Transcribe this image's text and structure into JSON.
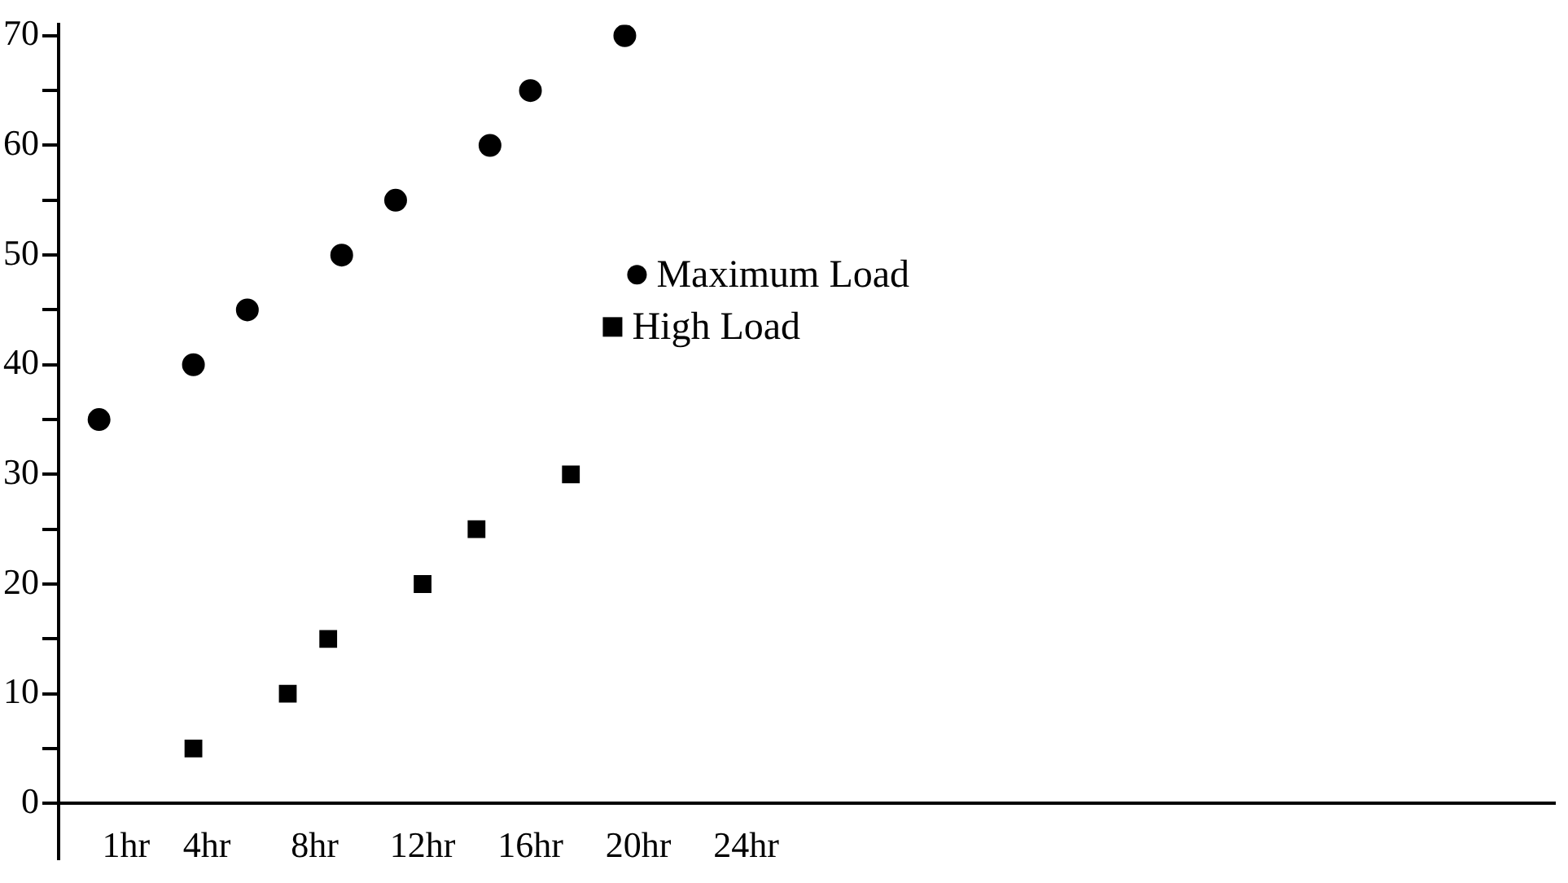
{
  "chart_data": {
    "type": "scatter",
    "xlim": [
      -1.5,
      54
    ],
    "ylim": [
      -5,
      71
    ],
    "xticks": [
      {
        "value": 1,
        "label": "1hr"
      },
      {
        "value": 4,
        "label": "4hr"
      },
      {
        "value": 8,
        "label": "8hr"
      },
      {
        "value": 12,
        "label": "12hr"
      },
      {
        "value": 16,
        "label": "16hr"
      },
      {
        "value": 20,
        "label": "20hr"
      },
      {
        "value": 24,
        "label": "24hr"
      }
    ],
    "yticks": [
      0,
      {
        "value": 5,
        "label": null
      },
      10,
      {
        "value": 15,
        "label": null
      },
      20,
      {
        "value": 25,
        "label": null
      },
      30,
      {
        "value": 35,
        "label": null
      },
      40,
      {
        "value": 45,
        "label": null
      },
      50,
      {
        "value": 55,
        "label": null
      },
      60,
      {
        "value": 65,
        "label": null
      },
      70
    ],
    "grid": false,
    "legend": "top",
    "series": [
      {
        "name": "Maximum Load",
        "color": "#000000",
        "marker": "circle",
        "x": [
          0,
          3.5,
          5.5,
          9,
          11,
          14.5,
          16,
          19.5
        ],
        "values": [
          35,
          40,
          45,
          50,
          55,
          60,
          65,
          70
        ]
      },
      {
        "name": "High Load",
        "color": "#000000",
        "marker": "square",
        "x": [
          3.5,
          7,
          8.5,
          12,
          14,
          17.5
        ],
        "values": [
          5,
          10,
          15,
          20,
          25,
          30
        ]
      }
    ]
  }
}
